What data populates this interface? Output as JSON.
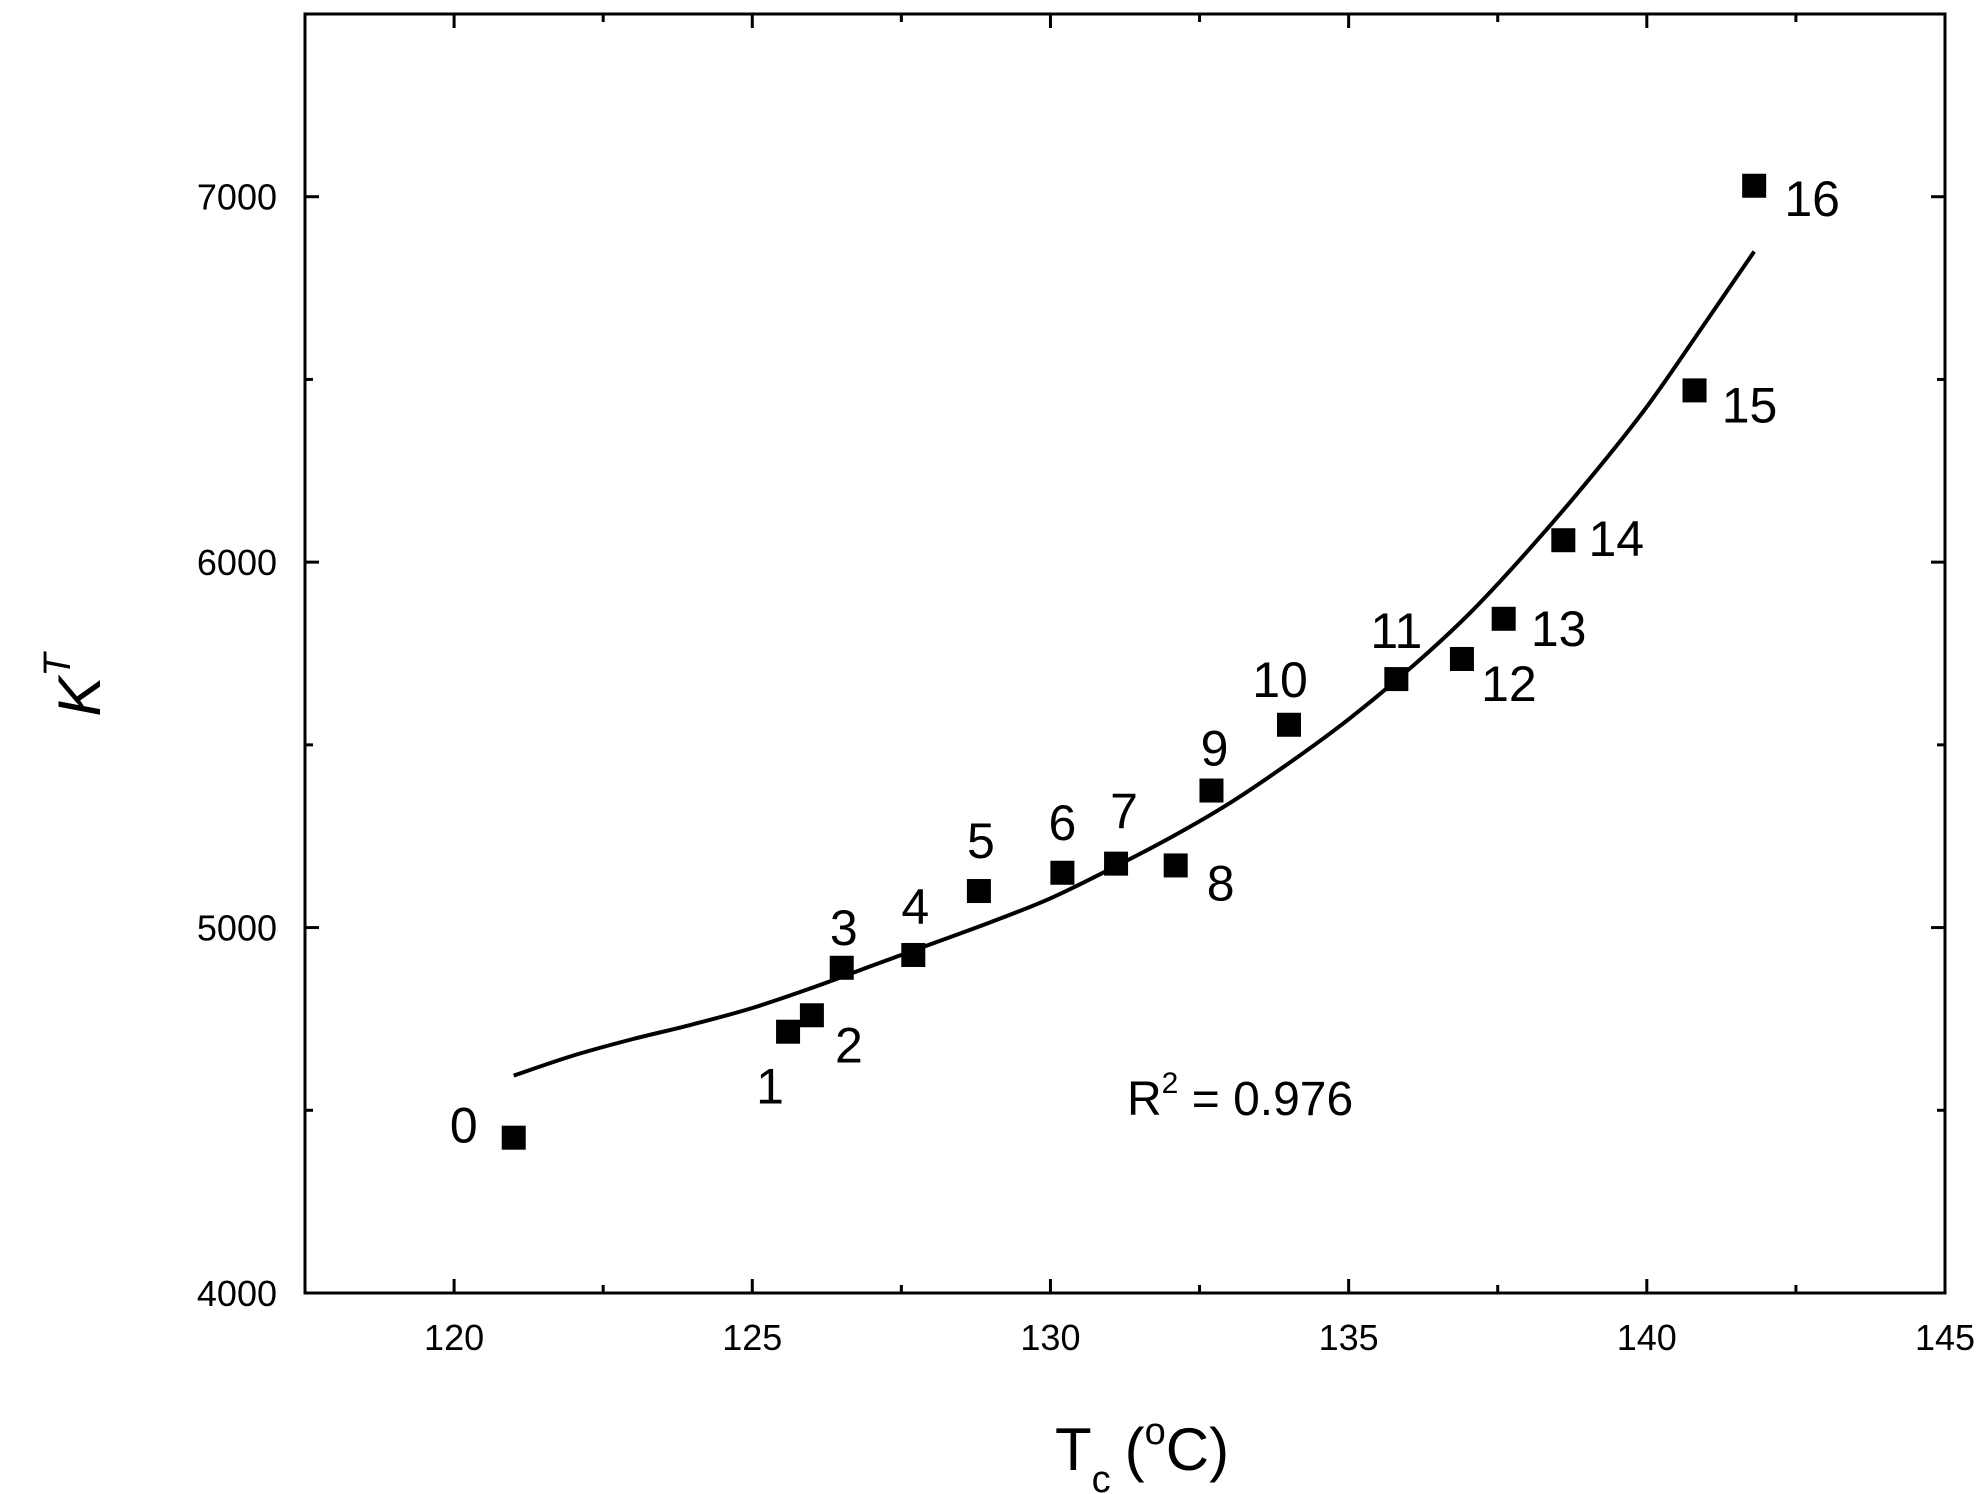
{
  "chart_data": {
    "type": "scatter",
    "title": "",
    "xlabel": "T",
    "xlabel_subscript": "c",
    "xlabel_unit": "(",
    "xlabel_unit_sup": "o",
    "xlabel_unit_tail": "C)",
    "ylabel": "K",
    "ylabel_superscript": "T",
    "xlim": [
      117.5,
      145
    ],
    "ylim": [
      4000,
      7500
    ],
    "x_ticks": [
      120,
      125,
      130,
      135,
      140,
      145
    ],
    "y_ticks": [
      4000,
      5000,
      6000,
      7000
    ],
    "x_minor_ticks": [
      122.5,
      127.5,
      132.5,
      137.5,
      142.5
    ],
    "y_minor_ticks": [
      4500,
      5500,
      6500
    ],
    "grid": false,
    "series": [
      {
        "name": "data",
        "marker": "square",
        "points": [
          {
            "label": "0",
            "x": 121.0,
            "y": 4425
          },
          {
            "label": "1",
            "x": 125.6,
            "y": 4715
          },
          {
            "label": "2",
            "x": 126.0,
            "y": 4760
          },
          {
            "label": "3",
            "x": 126.5,
            "y": 4890
          },
          {
            "label": "4",
            "x": 127.7,
            "y": 4925
          },
          {
            "label": "5",
            "x": 128.8,
            "y": 5100
          },
          {
            "label": "6",
            "x": 130.2,
            "y": 5150
          },
          {
            "label": "7",
            "x": 131.1,
            "y": 5175
          },
          {
            "label": "8",
            "x": 132.1,
            "y": 5170
          },
          {
            "label": "9",
            "x": 132.7,
            "y": 5375
          },
          {
            "label": "10",
            "x": 134.0,
            "y": 5555
          },
          {
            "label": "11",
            "x": 135.8,
            "y": 5680
          },
          {
            "label": "12",
            "x": 136.9,
            "y": 5735
          },
          {
            "label": "13",
            "x": 137.6,
            "y": 5845
          },
          {
            "label": "14",
            "x": 138.6,
            "y": 6060
          },
          {
            "label": "15",
            "x": 140.8,
            "y": 6470
          },
          {
            "label": "16",
            "x": 141.8,
            "y": 7030
          }
        ]
      },
      {
        "name": "fit",
        "type": "line",
        "x": [
          121.0,
          122.0,
          123.0,
          124.0,
          125.0,
          126.0,
          127.0,
          128.0,
          129.0,
          130.0,
          131.0,
          132.0,
          133.0,
          134.0,
          135.0,
          136.0,
          137.0,
          138.0,
          139.0,
          140.0,
          141.0,
          141.8
        ],
        "y": [
          4595,
          4650,
          4695,
          4735,
          4780,
          4835,
          4895,
          4955,
          5015,
          5080,
          5160,
          5245,
          5340,
          5450,
          5570,
          5705,
          5855,
          6030,
          6220,
          6425,
          6660,
          6850
        ]
      }
    ],
    "annotations": [
      {
        "text": "R",
        "sup": "2",
        "tail": " = 0.976",
        "x": 132.5,
        "y": 4540
      }
    ]
  }
}
